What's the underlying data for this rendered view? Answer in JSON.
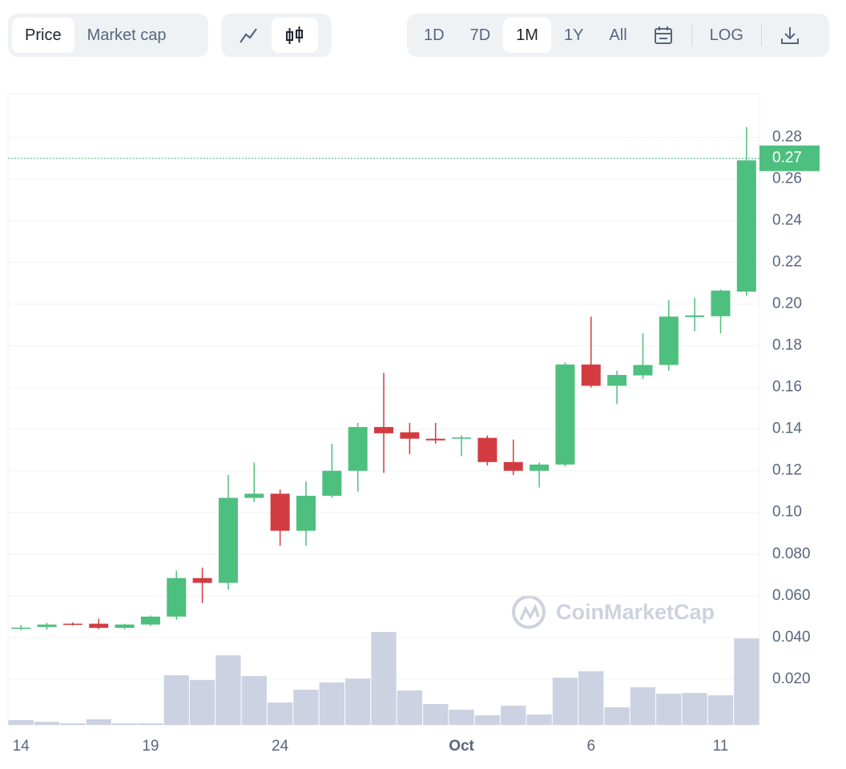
{
  "controls": {
    "metric_tabs": [
      "Price",
      "Market cap"
    ],
    "range_tabs": [
      "1D",
      "7D",
      "1M",
      "1Y",
      "All"
    ],
    "log_label": "LOG"
  },
  "watermark": "CoinMarketCap",
  "chart_data": {
    "type": "candlestick",
    "categories": [
      "14",
      null,
      null,
      null,
      null,
      "19",
      null,
      null,
      null,
      null,
      "24",
      null,
      null,
      null,
      null,
      null,
      null,
      "Oct",
      null,
      null,
      null,
      null,
      "6",
      null,
      null,
      null,
      null,
      "11",
      null
    ],
    "open": [
      0.0443,
      0.045,
      0.0466,
      0.0466,
      0.0446,
      0.0462,
      0.05,
      0.0685,
      0.0662,
      0.107,
      0.109,
      0.0912,
      0.108,
      0.12,
      0.141,
      0.1385,
      0.1354,
      0.1354,
      0.1358,
      0.1242,
      0.12,
      0.123,
      0.171,
      0.1608,
      0.1658,
      0.1708,
      0.1938,
      0.1942,
      0.206
    ],
    "high": [
      0.046,
      0.047,
      0.0472,
      0.049,
      0.0466,
      0.0505,
      0.072,
      0.0735,
      0.118,
      0.124,
      0.111,
      0.115,
      0.133,
      0.143,
      0.167,
      0.143,
      0.143,
      0.137,
      0.137,
      0.135,
      0.124,
      0.172,
      0.194,
      0.168,
      0.186,
      0.202,
      0.203,
      0.207,
      0.285
    ],
    "low": [
      0.0435,
      0.0437,
      0.0457,
      0.044,
      0.044,
      0.0455,
      0.0485,
      0.0565,
      0.063,
      0.105,
      0.084,
      0.084,
      0.107,
      0.11,
      0.119,
      0.128,
      0.133,
      0.127,
      0.1225,
      0.118,
      0.112,
      0.122,
      0.16,
      0.152,
      0.164,
      0.168,
      0.187,
      0.186,
      0.204
    ],
    "close": [
      0.0447,
      0.0462,
      0.0462,
      0.0446,
      0.0462,
      0.05,
      0.0685,
      0.0662,
      0.107,
      0.109,
      0.0912,
      0.108,
      0.12,
      0.141,
      0.138,
      0.1354,
      0.1346,
      0.136,
      0.1242,
      0.12,
      0.123,
      0.171,
      0.1608,
      0.166,
      0.1708,
      0.194,
      0.1946,
      0.2065,
      0.269
    ],
    "volume": [
      6,
      4,
      2,
      7,
      2,
      2,
      62,
      56,
      87,
      61,
      28,
      44,
      53,
      58,
      116,
      43,
      26,
      19,
      12,
      24,
      13,
      59,
      67,
      22,
      47,
      39,
      40,
      37,
      108
    ],
    "volume_ylim": [
      0,
      125
    ],
    "ylim": [
      -0.002,
      0.301
    ],
    "yticks": [
      0.28,
      0.26,
      0.24,
      0.22,
      {
        "value": 0.2,
        "label": "0.20"
      },
      0.18,
      0.16,
      0.14,
      0.12,
      {
        "value": 0.1,
        "label": "0.10"
      },
      {
        "value": 0.08,
        "label": "0.080"
      },
      {
        "value": 0.06,
        "label": "0.060"
      },
      {
        "value": 0.04,
        "label": "0.040"
      },
      {
        "value": 0.02,
        "label": "0.020"
      }
    ],
    "grid": true,
    "up_color": "#4dbf7e",
    "down_color": "#d23c41",
    "volume_color": "#cdd2e2",
    "last_price": 0.27
  }
}
